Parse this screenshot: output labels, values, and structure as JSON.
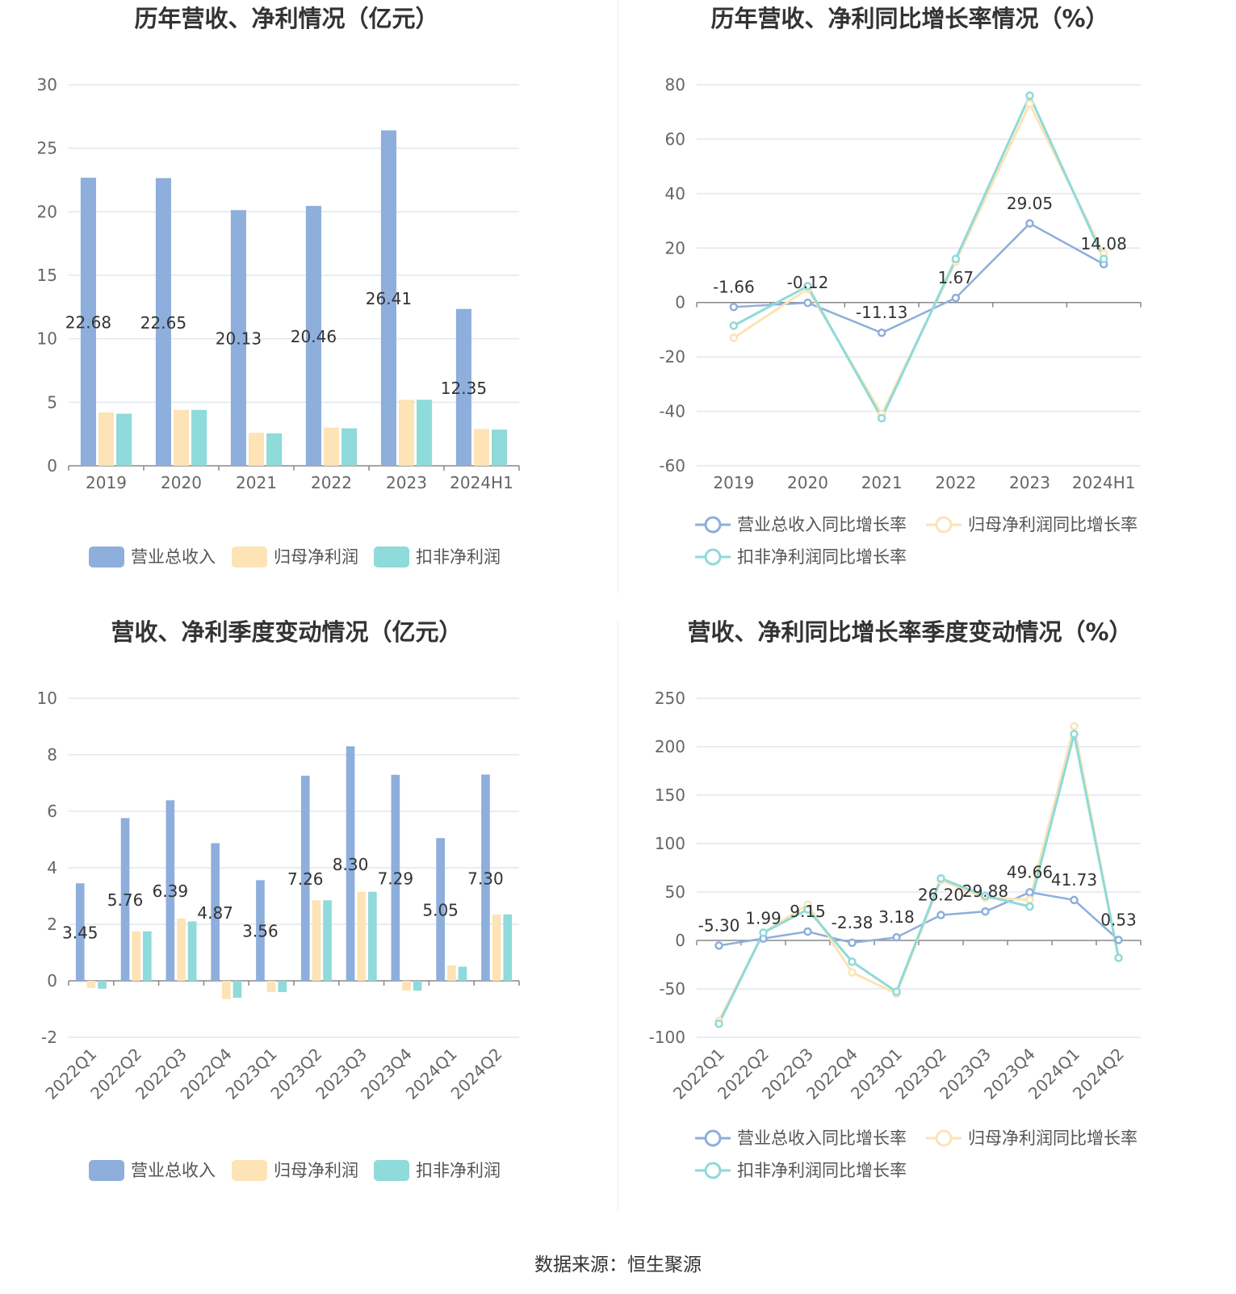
{
  "colors": {
    "revenue": "#8eaedc",
    "net_profit": "#fde3b5",
    "deducted_profit": "#8fdada",
    "grid": "#e3e6ef",
    "axis": "#888888"
  },
  "footer": {
    "source": "数据来源：恒生聚源"
  },
  "chart_data": [
    {
      "id": "annual-values",
      "type": "bar",
      "title": "历年营收、净利情况（亿元）",
      "categories": [
        "2019",
        "2020",
        "2021",
        "2022",
        "2023",
        "2024H1"
      ],
      "ylim": [
        0,
        30
      ],
      "yticks": [
        0,
        5,
        10,
        15,
        20,
        25,
        30
      ],
      "grid": true,
      "legend_position": "bottom",
      "labels_series": 0,
      "series": [
        {
          "name": "营业总收入",
          "color": "#8eaedc",
          "values": [
            22.68,
            22.65,
            20.13,
            20.46,
            26.41,
            12.35
          ],
          "labels": [
            "22.68",
            "22.65",
            "20.13",
            "20.46",
            "26.41",
            "12.35"
          ]
        },
        {
          "name": "归母净利润",
          "color": "#fde3b5",
          "values": [
            4.2,
            4.4,
            2.6,
            3.0,
            5.2,
            2.9
          ]
        },
        {
          "name": "扣非净利润",
          "color": "#8fdada",
          "values": [
            4.1,
            4.4,
            2.55,
            2.95,
            5.2,
            2.85
          ]
        }
      ]
    },
    {
      "id": "annual-growth",
      "type": "line",
      "title": "历年营收、净利同比增长率情况（%）",
      "categories": [
        "2019",
        "2020",
        "2021",
        "2022",
        "2023",
        "2024H1"
      ],
      "ylim": [
        -60,
        80
      ],
      "yticks": [
        -60,
        -40,
        -20,
        0,
        20,
        40,
        60,
        80
      ],
      "grid": true,
      "legend_position": "bottom",
      "series": [
        {
          "name": "营业总收入同比增长率",
          "color": "#8eaedc",
          "values": [
            -1.66,
            -0.12,
            -11.13,
            1.67,
            29.05,
            14.08
          ],
          "labels": [
            "-1.66",
            "-0.12",
            "-11.13",
            "1.67",
            "29.05",
            "14.08"
          ]
        },
        {
          "name": "归母净利润同比增长率",
          "color": "#fde3b5",
          "values": [
            -13,
            5,
            -41,
            15,
            73,
            18
          ]
        },
        {
          "name": "扣非净利润同比增长率",
          "color": "#8fdada",
          "values": [
            -8.5,
            6,
            -42.5,
            16,
            76,
            16
          ]
        }
      ]
    },
    {
      "id": "quarterly-values",
      "type": "bar",
      "title": "营收、净利季度变动情况（亿元）",
      "categories": [
        "2022Q1",
        "2022Q2",
        "2022Q3",
        "2022Q4",
        "2023Q1",
        "2023Q2",
        "2023Q3",
        "2023Q4",
        "2024Q1",
        "2024Q2"
      ],
      "ylim": [
        -2,
        10
      ],
      "yticks": [
        -2,
        0,
        2,
        4,
        6,
        8,
        10
      ],
      "grid": true,
      "legend_position": "bottom",
      "rotate_x_labels": true,
      "labels_series": 0,
      "series": [
        {
          "name": "营业总收入",
          "color": "#8eaedc",
          "values": [
            3.45,
            5.76,
            6.39,
            4.87,
            3.56,
            7.26,
            8.3,
            7.29,
            5.05,
            7.3
          ],
          "labels": [
            "3.45",
            "5.76",
            "6.39",
            "4.87",
            "3.56",
            "7.26",
            "8.30",
            "7.29",
            "5.05",
            "7.30"
          ]
        },
        {
          "name": "归母净利润",
          "color": "#fde3b5",
          "values": [
            -0.25,
            1.75,
            2.2,
            -0.65,
            -0.4,
            2.85,
            3.15,
            -0.35,
            0.55,
            2.35
          ]
        },
        {
          "name": "扣非净利润",
          "color": "#8fdada",
          "values": [
            -0.28,
            1.75,
            2.1,
            -0.6,
            -0.4,
            2.85,
            3.15,
            -0.35,
            0.5,
            2.35
          ]
        }
      ]
    },
    {
      "id": "quarterly-growth",
      "type": "line",
      "title": "营收、净利同比增长率季度变动情况（%）",
      "categories": [
        "2022Q1",
        "2022Q2",
        "2022Q3",
        "2022Q4",
        "2023Q1",
        "2023Q2",
        "2023Q3",
        "2023Q4",
        "2024Q1",
        "2024Q2"
      ],
      "ylim": [
        -100,
        250
      ],
      "yticks": [
        -100,
        -50,
        0,
        50,
        100,
        150,
        200,
        250
      ],
      "grid": true,
      "legend_position": "bottom",
      "rotate_x_labels": true,
      "series": [
        {
          "name": "营业总收入同比增长率",
          "color": "#8eaedc",
          "values": [
            -5.3,
            1.99,
            9.15,
            -2.38,
            3.18,
            26.2,
            29.88,
            49.66,
            41.73,
            0.53
          ],
          "labels": [
            "-5.30",
            "1.99",
            "9.15",
            "-2.38",
            "3.18",
            "26.20",
            "29.88",
            "49.66",
            "41.73",
            "0.53"
          ]
        },
        {
          "name": "归母净利润同比增长率",
          "color": "#fde3b5",
          "values": [
            -83,
            8,
            37,
            -33,
            -55,
            62,
            44,
            42,
            221,
            -18
          ]
        },
        {
          "name": "扣非净利润同比增长率",
          "color": "#8fdada",
          "values": [
            -86,
            8,
            32,
            -22,
            -53,
            64,
            46,
            35,
            213,
            -18
          ]
        }
      ]
    }
  ]
}
